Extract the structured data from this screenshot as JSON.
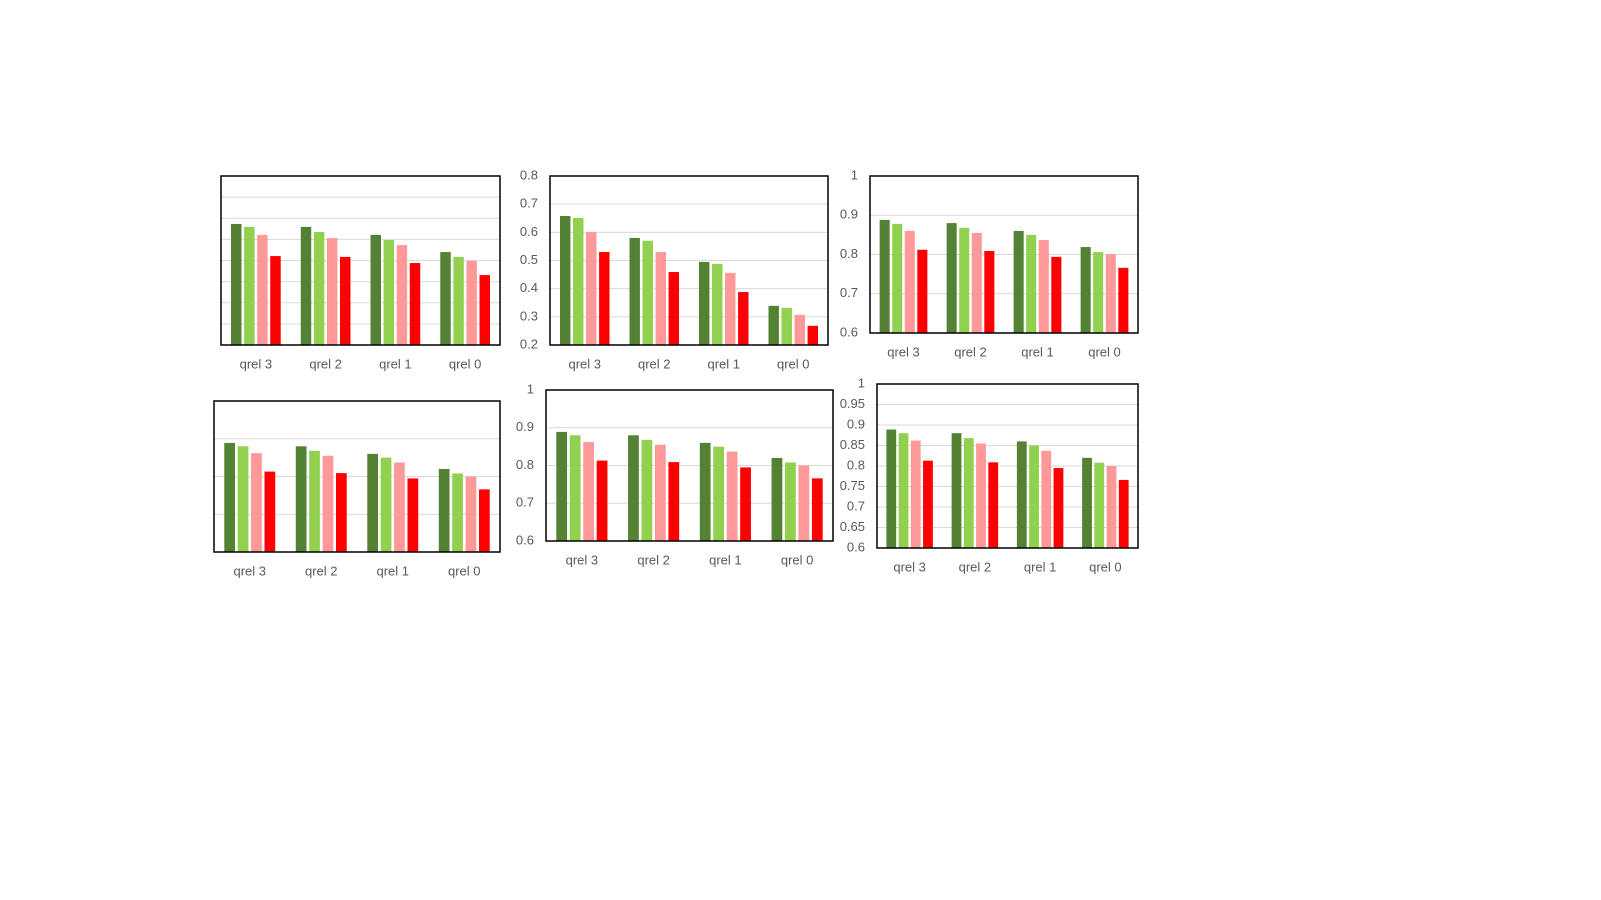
{
  "chart_data": [
    {
      "type": "bar",
      "categories": [
        "qrel 3",
        "qrel 2",
        "qrel 1",
        "qrel 0"
      ],
      "ylim": [
        0,
        0.8
      ],
      "yticks": [
        0,
        0.1,
        0.2,
        0.3,
        0.4,
        0.5,
        0.6,
        0.7,
        0.8
      ],
      "ytick_labels": false,
      "grid": true,
      "series": [
        {
          "color": "#548235",
          "values": [
            0.573,
            0.559,
            0.521,
            0.44
          ]
        },
        {
          "color": "#92d050",
          "values": [
            0.559,
            0.535,
            0.497,
            0.417
          ]
        },
        {
          "color": "#ff9999",
          "values": [
            0.521,
            0.506,
            0.473,
            0.398
          ]
        },
        {
          "color": "#ff0000",
          "values": [
            0.421,
            0.417,
            0.388,
            0.331
          ]
        }
      ]
    },
    {
      "type": "bar",
      "categories": [
        "qrel 3",
        "qrel 2",
        "qrel 1",
        "qrel 0"
      ],
      "ylim": [
        0.2,
        0.8
      ],
      "yticks": [
        0.2,
        0.3,
        0.4,
        0.5,
        0.6,
        0.7,
        0.8
      ],
      "grid": true,
      "series": [
        {
          "color": "#548235",
          "values": [
            0.658,
            0.58,
            0.495,
            0.339
          ]
        },
        {
          "color": "#92d050",
          "values": [
            0.651,
            0.57,
            0.488,
            0.332
          ]
        },
        {
          "color": "#ff9999",
          "values": [
            0.601,
            0.53,
            0.456,
            0.307
          ]
        },
        {
          "color": "#ff0000",
          "values": [
            0.53,
            0.459,
            0.388,
            0.268
          ]
        }
      ]
    },
    {
      "type": "bar",
      "categories": [
        "qrel 3",
        "qrel 2",
        "qrel 1",
        "qrel 0"
      ],
      "ylim": [
        0.6,
        1
      ],
      "yticks": [
        0.6,
        0.7,
        0.8,
        0.9,
        1
      ],
      "grid": true,
      "series": [
        {
          "color": "#548235",
          "values": [
            0.888,
            0.88,
            0.86,
            0.819
          ]
        },
        {
          "color": "#92d050",
          "values": [
            0.878,
            0.868,
            0.85,
            0.806
          ]
        },
        {
          "color": "#ff9999",
          "values": [
            0.86,
            0.855,
            0.837,
            0.801
          ]
        },
        {
          "color": "#ff0000",
          "values": [
            0.812,
            0.809,
            0.794,
            0.766
          ]
        }
      ]
    },
    {
      "type": "bar",
      "categories": [
        "qrel 3",
        "qrel 2",
        "qrel 1",
        "qrel 0"
      ],
      "ylim": [
        0.6,
        1
      ],
      "yticks": [
        0.6,
        0.7,
        0.8,
        0.9,
        1
      ],
      "ytick_labels": false,
      "grid": true,
      "series": [
        {
          "color": "#548235",
          "values": [
            0.889,
            0.88,
            0.86,
            0.82
          ]
        },
        {
          "color": "#92d050",
          "values": [
            0.88,
            0.868,
            0.85,
            0.808
          ]
        },
        {
          "color": "#ff9999",
          "values": [
            0.862,
            0.855,
            0.837,
            0.8
          ]
        },
        {
          "color": "#ff0000",
          "values": [
            0.813,
            0.809,
            0.795,
            0.766
          ]
        }
      ]
    },
    {
      "type": "bar",
      "categories": [
        "qrel 3",
        "qrel 2",
        "qrel 1",
        "qrel 0"
      ],
      "ylim": [
        0.6,
        1
      ],
      "yticks": [
        0.6,
        0.7,
        0.8,
        0.9,
        1
      ],
      "grid": true,
      "series": [
        {
          "color": "#548235",
          "values": [
            0.889,
            0.88,
            0.86,
            0.82
          ]
        },
        {
          "color": "#92d050",
          "values": [
            0.88,
            0.868,
            0.85,
            0.808
          ]
        },
        {
          "color": "#ff9999",
          "values": [
            0.862,
            0.855,
            0.837,
            0.8
          ]
        },
        {
          "color": "#ff0000",
          "values": [
            0.813,
            0.809,
            0.795,
            0.766
          ]
        }
      ]
    },
    {
      "type": "bar",
      "categories": [
        "qrel 3",
        "qrel 2",
        "qrel 1",
        "qrel 0"
      ],
      "ylim": [
        0.6,
        1
      ],
      "yticks": [
        0.6,
        0.65,
        0.7,
        0.75,
        0.8,
        0.85,
        0.9,
        0.95,
        1
      ],
      "grid": true,
      "series": [
        {
          "color": "#548235",
          "values": [
            0.889,
            0.88,
            0.86,
            0.82
          ]
        },
        {
          "color": "#92d050",
          "values": [
            0.88,
            0.868,
            0.85,
            0.808
          ]
        },
        {
          "color": "#ff9999",
          "values": [
            0.862,
            0.855,
            0.837,
            0.8
          ]
        },
        {
          "color": "#ff0000",
          "values": [
            0.813,
            0.809,
            0.795,
            0.766
          ]
        }
      ]
    }
  ]
}
